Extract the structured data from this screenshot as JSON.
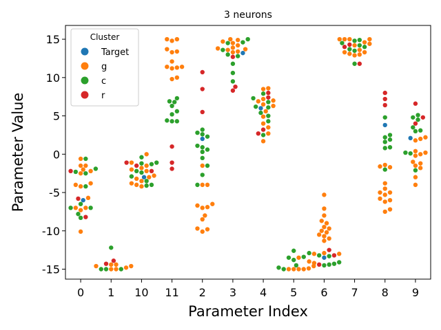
{
  "chart_data": {
    "type": "scatter",
    "subtype": "swarm",
    "title": "3 neurons",
    "xlabel": "Parameter Index",
    "ylabel": "Parameter Value",
    "categories": [
      "0",
      "1",
      "10",
      "11",
      "2",
      "3",
      "4",
      "5",
      "6",
      "7",
      "8",
      "9"
    ],
    "yticks": [
      -15,
      -10,
      -5,
      0,
      5,
      10,
      15
    ],
    "ylim": [
      -16.3,
      16.8
    ],
    "grid": false,
    "legend": {
      "title": "Cluster",
      "placement": "upper-left",
      "entries": [
        {
          "name": "Target",
          "color": "#1f77b4"
        },
        {
          "name": "g",
          "color": "#ff7f0e"
        },
        {
          "name": "c",
          "color": "#2ca02c"
        },
        {
          "name": "r",
          "color": "#d62728"
        }
      ]
    },
    "series": [
      {
        "name": "Target",
        "color": "#1f77b4",
        "values": [
          [
            0,
            -6.0
          ],
          [
            2,
            -3.0
          ],
          [
            4,
            2.0
          ],
          [
            5,
            13.2
          ],
          [
            6,
            6.0
          ],
          [
            8,
            -13.5
          ],
          [
            10,
            3.8
          ],
          [
            11,
            2.1
          ]
        ]
      },
      {
        "name": "g",
        "color": "#ff7f0e",
        "values": [
          [
            0,
            -0.6
          ],
          [
            0,
            -1.5
          ],
          [
            0,
            -1.5
          ],
          [
            0,
            -2.0
          ],
          [
            0,
            -2.2
          ],
          [
            0,
            -2.5
          ],
          [
            0,
            -3.8
          ],
          [
            0,
            -4.0
          ],
          [
            0,
            -4.2
          ],
          [
            0,
            -5.7
          ],
          [
            0,
            -7.0
          ],
          [
            0,
            -7.0
          ],
          [
            0,
            -7.3
          ],
          [
            0,
            -10.1
          ],
          [
            1,
            -14.4
          ],
          [
            1,
            -14.4
          ],
          [
            1,
            -14.6
          ],
          [
            1,
            -14.6
          ],
          [
            1,
            -14.8
          ],
          [
            1,
            -15.0
          ],
          [
            1,
            -15.0
          ],
          [
            2,
            0.0
          ],
          [
            2,
            -1.1
          ],
          [
            2,
            -1.5
          ],
          [
            2,
            -1.8
          ],
          [
            2,
            -2.0
          ],
          [
            2,
            -2.2
          ],
          [
            2,
            -2.8
          ],
          [
            2,
            -3.0
          ],
          [
            2,
            -3.2
          ],
          [
            2,
            -3.5
          ],
          [
            2,
            -3.8
          ],
          [
            2,
            -4.0
          ],
          [
            2,
            -4.2
          ],
          [
            3,
            15.0
          ],
          [
            3,
            15.0
          ],
          [
            3,
            14.8
          ],
          [
            3,
            13.7
          ],
          [
            3,
            13.4
          ],
          [
            3,
            13.3
          ],
          [
            3,
            12.1
          ],
          [
            3,
            11.4
          ],
          [
            3,
            11.4
          ],
          [
            3,
            11.3
          ],
          [
            3,
            11.2
          ],
          [
            3,
            10.0
          ],
          [
            3,
            9.8
          ],
          [
            4,
            -1.5
          ],
          [
            4,
            -4.0
          ],
          [
            4,
            -4.0
          ],
          [
            4,
            -6.5
          ],
          [
            4,
            -6.7
          ],
          [
            4,
            -6.9
          ],
          [
            4,
            -7.0
          ],
          [
            4,
            -8.0
          ],
          [
            4,
            -8.5
          ],
          [
            4,
            -9.7
          ],
          [
            4,
            -9.8
          ],
          [
            4,
            -10.1
          ],
          [
            5,
            15.0
          ],
          [
            5,
            14.9
          ],
          [
            5,
            14.7
          ],
          [
            5,
            14.5
          ],
          [
            5,
            14.2
          ],
          [
            5,
            13.9
          ],
          [
            5,
            13.8
          ],
          [
            5,
            13.7
          ],
          [
            5,
            13.6
          ],
          [
            5,
            13.4
          ],
          [
            5,
            13.3
          ],
          [
            6,
            8.6
          ],
          [
            6,
            8.5
          ],
          [
            6,
            7.2
          ],
          [
            6,
            7.0
          ],
          [
            6,
            6.9
          ],
          [
            6,
            6.5
          ],
          [
            6,
            6.3
          ],
          [
            6,
            5.6
          ],
          [
            6,
            4.9
          ],
          [
            6,
            4.0
          ],
          [
            6,
            3.5
          ],
          [
            6,
            2.7
          ],
          [
            6,
            1.7
          ],
          [
            7,
            -13.5
          ],
          [
            7,
            -14.6
          ],
          [
            7,
            -14.9
          ],
          [
            7,
            -15.0
          ],
          [
            7,
            -15.0
          ],
          [
            7,
            -15.0
          ],
          [
            7,
            -15.0
          ],
          [
            8,
            -5.3
          ],
          [
            8,
            -7.1
          ],
          [
            8,
            -8.0
          ],
          [
            8,
            -8.7
          ],
          [
            8,
            -9.0
          ],
          [
            8,
            -9.5
          ],
          [
            8,
            -9.7
          ],
          [
            8,
            -10.0
          ],
          [
            8,
            -10.2
          ],
          [
            8,
            -10.5
          ],
          [
            8,
            -10.7
          ],
          [
            8,
            -11.0
          ],
          [
            8,
            -11.3
          ],
          [
            8,
            -12.9
          ],
          [
            8,
            -13.0
          ],
          [
            8,
            -13.0
          ],
          [
            8,
            -14.0
          ],
          [
            8,
            -14.2
          ],
          [
            9,
            15.0
          ],
          [
            9,
            15.0
          ],
          [
            9,
            15.0
          ],
          [
            9,
            15.0
          ],
          [
            9,
            14.6
          ],
          [
            9,
            14.4
          ],
          [
            9,
            14.2
          ],
          [
            9,
            13.6
          ],
          [
            9,
            13.3
          ],
          [
            9,
            13.3
          ],
          [
            9,
            13.1
          ],
          [
            9,
            13.0
          ],
          [
            9,
            12.9
          ],
          [
            10,
            -1.4
          ],
          [
            10,
            -1.6
          ],
          [
            10,
            -1.7
          ],
          [
            10,
            -3.8
          ],
          [
            10,
            -4.5
          ],
          [
            10,
            -5.0
          ],
          [
            10,
            -5.0
          ],
          [
            10,
            -5.3
          ],
          [
            10,
            -5.8
          ],
          [
            10,
            -6.0
          ],
          [
            10,
            -6.2
          ],
          [
            10,
            -7.2
          ],
          [
            10,
            -7.5
          ],
          [
            11,
            2.2
          ],
          [
            11,
            2.0
          ],
          [
            11,
            1.8
          ],
          [
            11,
            0.4
          ],
          [
            11,
            0.2
          ],
          [
            11,
            0.0
          ],
          [
            11,
            -0.2
          ],
          [
            11,
            -1.0
          ],
          [
            11,
            -1.2
          ],
          [
            11,
            -1.5
          ],
          [
            11,
            -1.8
          ],
          [
            11,
            -3.0
          ],
          [
            11,
            -4.0
          ]
        ]
      },
      {
        "name": "c",
        "color": "#2ca02c",
        "values": [
          [
            0,
            -0.6
          ],
          [
            0,
            -1.9
          ],
          [
            0,
            -2.3
          ],
          [
            0,
            -2.5
          ],
          [
            0,
            -4.2
          ],
          [
            0,
            -6.5
          ],
          [
            0,
            -7.0
          ],
          [
            0,
            -7.0
          ],
          [
            0,
            -7.8
          ],
          [
            0,
            -8.3
          ],
          [
            1,
            -12.2
          ],
          [
            1,
            -15.0
          ],
          [
            1,
            -15.0
          ],
          [
            1,
            -15.0
          ],
          [
            2,
            -0.4
          ],
          [
            2,
            -1.1
          ],
          [
            2,
            -1.2
          ],
          [
            2,
            -1.3
          ],
          [
            2,
            -2.2
          ],
          [
            2,
            -2.4
          ],
          [
            2,
            -2.9
          ],
          [
            2,
            -3.5
          ],
          [
            2,
            -4.0
          ],
          [
            2,
            -4.1
          ],
          [
            3,
            7.3
          ],
          [
            3,
            6.9
          ],
          [
            3,
            6.8
          ],
          [
            3,
            6.3
          ],
          [
            3,
            5.6
          ],
          [
            3,
            5.2
          ],
          [
            3,
            4.4
          ],
          [
            3,
            4.3
          ],
          [
            3,
            4.3
          ],
          [
            4,
            3.2
          ],
          [
            4,
            2.8
          ],
          [
            4,
            2.6
          ],
          [
            4,
            2.3
          ],
          [
            4,
            1.1
          ],
          [
            4,
            0.9
          ],
          [
            4,
            0.6
          ],
          [
            4,
            0.3
          ],
          [
            4,
            -0.5
          ],
          [
            4,
            -1.5
          ],
          [
            4,
            -2.7
          ],
          [
            4,
            -4.0
          ],
          [
            5,
            15.0
          ],
          [
            5,
            14.6
          ],
          [
            5,
            14.5
          ],
          [
            5,
            13.6
          ],
          [
            5,
            13.0
          ],
          [
            5,
            12.8
          ],
          [
            5,
            11.8
          ],
          [
            5,
            10.6
          ],
          [
            5,
            9.5
          ],
          [
            6,
            7.9
          ],
          [
            6,
            7.3
          ],
          [
            6,
            6.8
          ],
          [
            6,
            6.2
          ],
          [
            6,
            6.1
          ],
          [
            6,
            5.4
          ],
          [
            6,
            5.0
          ],
          [
            6,
            4.3
          ],
          [
            6,
            2.5
          ],
          [
            7,
            -12.6
          ],
          [
            7,
            -13.4
          ],
          [
            7,
            -13.5
          ],
          [
            7,
            -13.8
          ],
          [
            7,
            -14.5
          ],
          [
            7,
            -14.8
          ],
          [
            7,
            -15.0
          ],
          [
            8,
            -12.9
          ],
          [
            8,
            -13.2
          ],
          [
            8,
            -13.3
          ],
          [
            8,
            -14.1
          ],
          [
            8,
            -14.3
          ],
          [
            8,
            -14.4
          ],
          [
            8,
            -14.5
          ],
          [
            9,
            14.9
          ],
          [
            9,
            14.8
          ],
          [
            9,
            14.5
          ],
          [
            9,
            14.2
          ],
          [
            9,
            14.0
          ],
          [
            9,
            13.7
          ],
          [
            9,
            13.5
          ],
          [
            9,
            11.8
          ],
          [
            10,
            4.8
          ],
          [
            10,
            2.5
          ],
          [
            10,
            2.2
          ],
          [
            10,
            1.9
          ],
          [
            10,
            1.6
          ],
          [
            10,
            0.9
          ],
          [
            10,
            0.8
          ],
          [
            10,
            -2.0
          ],
          [
            11,
            5.1
          ],
          [
            11,
            4.8
          ],
          [
            11,
            4.5
          ],
          [
            11,
            3.5
          ],
          [
            11,
            3.1
          ],
          [
            11,
            3.0
          ],
          [
            11,
            0.2
          ],
          [
            11,
            0.1
          ],
          [
            11,
            -2.1
          ]
        ]
      },
      {
        "name": "r",
        "color": "#d62728",
        "values": [
          [
            0,
            -2.2
          ],
          [
            0,
            -5.8
          ],
          [
            0,
            -8.2
          ],
          [
            1,
            -14.3
          ],
          [
            1,
            -13.9
          ],
          [
            2,
            -1.1
          ],
          [
            2,
            -1.5
          ],
          [
            2,
            -2.2
          ],
          [
            3,
            1.0
          ],
          [
            3,
            -1.1
          ],
          [
            3,
            -1.9
          ],
          [
            4,
            10.7
          ],
          [
            4,
            8.5
          ],
          [
            4,
            5.5
          ],
          [
            5,
            12.7
          ],
          [
            5,
            8.8
          ],
          [
            5,
            8.3
          ],
          [
            6,
            8.0
          ],
          [
            6,
            7.4
          ],
          [
            6,
            3.2
          ],
          [
            6,
            2.7
          ],
          [
            8,
            -12.5
          ],
          [
            8,
            -13.2
          ],
          [
            8,
            -14.4
          ],
          [
            9,
            14.3
          ],
          [
            9,
            14.0
          ],
          [
            9,
            11.8
          ],
          [
            10,
            8.0
          ],
          [
            10,
            7.2
          ],
          [
            10,
            6.4
          ],
          [
            11,
            6.6
          ],
          [
            11,
            4.8
          ],
          [
            11,
            4.0
          ]
        ]
      }
    ]
  }
}
